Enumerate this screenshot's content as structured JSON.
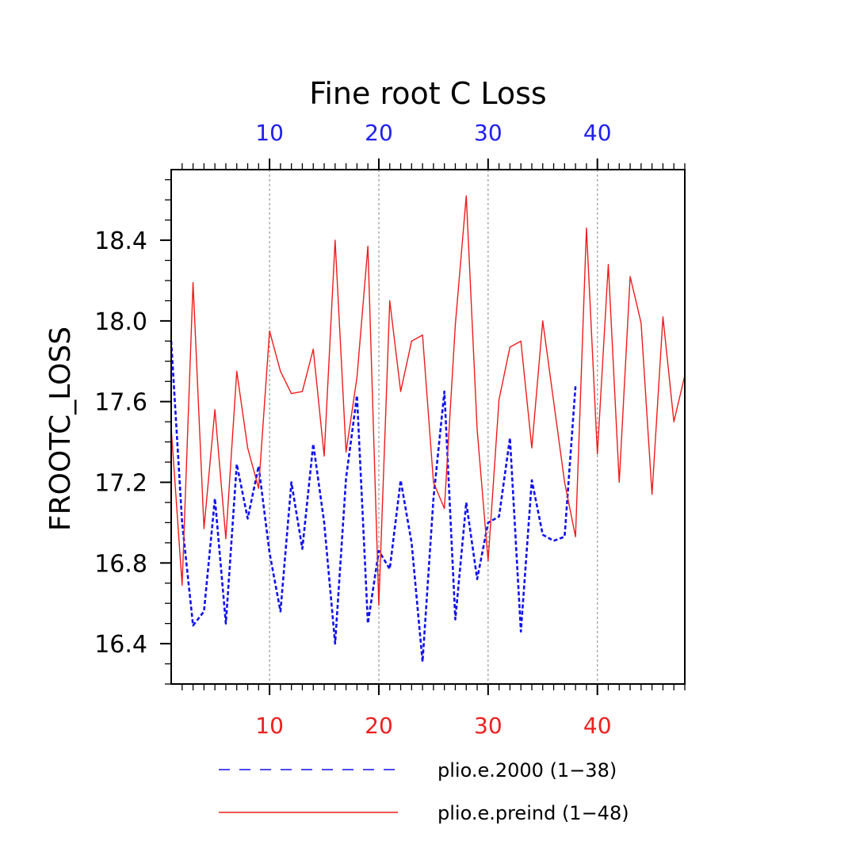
{
  "chart_data": {
    "type": "line",
    "title": "Fine root C Loss",
    "ylabel": "FROOTC_LOSS",
    "xlim": [
      1,
      48
    ],
    "ylim": [
      16.2,
      18.75
    ],
    "y_ticks": [
      16.4,
      16.8,
      17.2,
      17.6,
      18.0,
      18.4
    ],
    "y_tick_labels": [
      "16.4",
      "16.8",
      "17.2",
      "17.6",
      "18.0",
      "18.4"
    ],
    "top_axis": {
      "ticks": [
        10,
        20,
        30,
        40
      ],
      "labels": [
        "10",
        "20",
        "30",
        "40"
      ],
      "color": "#2020ee"
    },
    "bottom_axis": {
      "ticks": [
        10,
        20,
        30,
        40
      ],
      "labels": [
        "10",
        "20",
        "30",
        "40"
      ],
      "color": "#ee2020"
    },
    "grid": {
      "vertical_at": [
        10,
        20,
        30,
        40
      ],
      "style": "dotted"
    },
    "series": [
      {
        "name": "plio.e.2000 (1−38)",
        "color": "#1010ee",
        "dash": "dashed",
        "axis": "top",
        "x_start": 1,
        "values": [
          17.9,
          17.0,
          16.49,
          16.56,
          17.12,
          16.5,
          17.29,
          17.02,
          17.28,
          16.85,
          16.56,
          17.2,
          16.87,
          17.39,
          17.0,
          16.4,
          17.22,
          17.63,
          16.5,
          16.86,
          16.77,
          17.21,
          16.9,
          16.31,
          17.12,
          17.65,
          16.52,
          17.1,
          16.72,
          17.0,
          17.03,
          17.42,
          16.46,
          17.21,
          16.94,
          16.91,
          16.93,
          17.68
        ]
      },
      {
        "name": "plio.e.preind (1−48)",
        "color": "#ee1c1c",
        "dash": "solid",
        "axis": "bottom",
        "x_start": 1,
        "values": [
          17.47,
          16.69,
          18.19,
          16.97,
          17.56,
          16.92,
          17.75,
          17.37,
          17.17,
          17.95,
          17.75,
          17.64,
          17.65,
          17.86,
          17.33,
          18.4,
          17.35,
          17.72,
          18.37,
          16.59,
          18.1,
          17.65,
          17.9,
          17.93,
          17.2,
          17.07,
          17.98,
          18.62,
          17.46,
          16.81,
          17.61,
          17.87,
          17.9,
          17.37,
          18.0,
          17.6,
          17.2,
          16.93,
          18.46,
          17.34,
          18.28,
          17.2,
          18.22,
          17.99,
          17.14,
          18.02,
          17.5,
          17.73
        ]
      }
    ],
    "legend_position": "bottom"
  }
}
